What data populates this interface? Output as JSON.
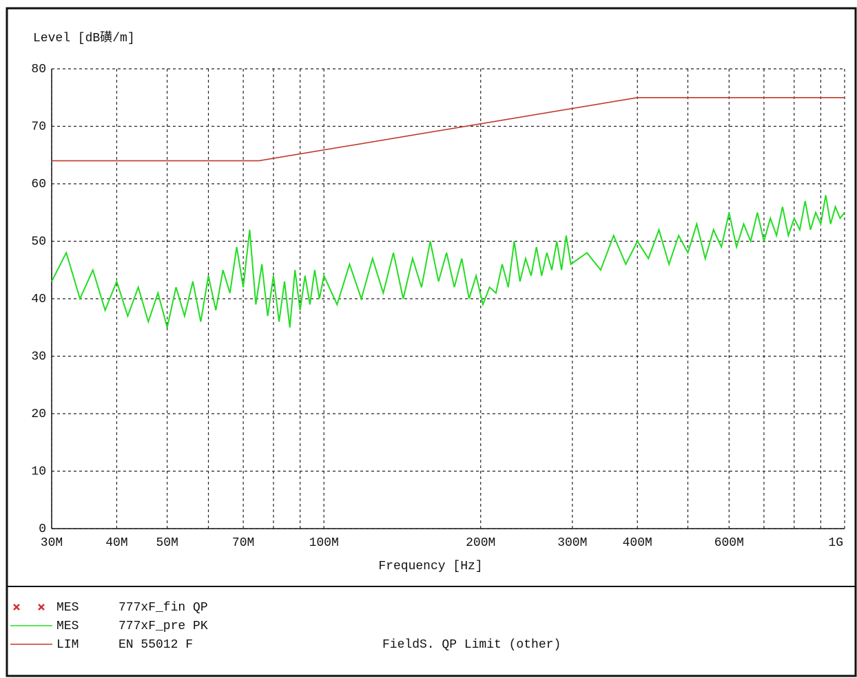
{
  "chart_data": {
    "type": "line",
    "ylabel": "Level [dB磺/m]",
    "xlabel": "Frequency [Hz]",
    "xscale": "log",
    "grid": true,
    "xlim": [
      30000000.0,
      1000000000.0
    ],
    "ylim": [
      0,
      80
    ],
    "yticks": [
      0,
      10,
      20,
      30,
      40,
      50,
      60,
      70,
      80
    ],
    "xticks": [
      {
        "value": 30000000.0,
        "label": "30M"
      },
      {
        "value": 40000000.0,
        "label": "40M"
      },
      {
        "value": 50000000.0,
        "label": "50M"
      },
      {
        "value": 70000000.0,
        "label": "70M"
      },
      {
        "value": 100000000.0,
        "label": "100M"
      },
      {
        "value": 200000000.0,
        "label": "200M"
      },
      {
        "value": 300000000.0,
        "label": "300M"
      },
      {
        "value": 400000000.0,
        "label": "400M"
      },
      {
        "value": 600000000.0,
        "label": "600M"
      },
      {
        "value": 1000000000.0,
        "label": "1G"
      }
    ],
    "xminor_ticks": [
      60000000.0,
      80000000.0,
      90000000.0,
      500000000.0,
      700000000.0,
      800000000.0,
      900000000.0
    ],
    "series": [
      {
        "kind": "MES",
        "name": "777xF_fin QP",
        "color": "#d03030",
        "marker": "x",
        "x": [],
        "values": []
      },
      {
        "kind": "MES",
        "name": "777xF_pre PK",
        "color": "#22dd22",
        "x": [
          30000000.0,
          32000000.0,
          34000000.0,
          36000000.0,
          38000000.0,
          40000000.0,
          42000000.0,
          44000000.0,
          46000000.0,
          48000000.0,
          50000000.0,
          52000000.0,
          54000000.0,
          56000000.0,
          58000000.0,
          60000000.0,
          62000000.0,
          64000000.0,
          66000000.0,
          68000000.0,
          70000000.0,
          72000000.0,
          74000000.0,
          76000000.0,
          78000000.0,
          80000000.0,
          82000000.0,
          84000000.0,
          86000000.0,
          88000000.0,
          90000000.0,
          92000000.0,
          94000000.0,
          96000000.0,
          98000000.0,
          100000000.0,
          106000000.0,
          112000000.0,
          118000000.0,
          124000000.0,
          130000000.0,
          136000000.0,
          142000000.0,
          148000000.0,
          154000000.0,
          160000000.0,
          166000000.0,
          172000000.0,
          178000000.0,
          184000000.0,
          190000000.0,
          196000000.0,
          202000000.0,
          208000000.0,
          214000000.0,
          220000000.0,
          226000000.0,
          232000000.0,
          238000000.0,
          244000000.0,
          250000000.0,
          256000000.0,
          262000000.0,
          268000000.0,
          274000000.0,
          280000000.0,
          286000000.0,
          292000000.0,
          298000000.0,
          320000000.0,
          340000000.0,
          360000000.0,
          380000000.0,
          400000000.0,
          420000000.0,
          440000000.0,
          460000000.0,
          480000000.0,
          500000000.0,
          520000000.0,
          540000000.0,
          560000000.0,
          580000000.0,
          600000000.0,
          620000000.0,
          640000000.0,
          660000000.0,
          680000000.0,
          700000000.0,
          720000000.0,
          740000000.0,
          760000000.0,
          780000000.0,
          800000000.0,
          820000000.0,
          840000000.0,
          860000000.0,
          880000000.0,
          900000000.0,
          920000000.0,
          940000000.0,
          960000000.0,
          980000000.0,
          1000000000.0
        ],
        "values": [
          43,
          48,
          40,
          45,
          38,
          43,
          37,
          42,
          36,
          41,
          35,
          42,
          37,
          43,
          36,
          44,
          38,
          45,
          41,
          49,
          42,
          52,
          39,
          46,
          37,
          44,
          36,
          43,
          35,
          45,
          38,
          44,
          39,
          45,
          40,
          44,
          39,
          46,
          40,
          47,
          41,
          48,
          40,
          47,
          42,
          50,
          43,
          48,
          42,
          47,
          40,
          44,
          39,
          42,
          41,
          46,
          42,
          50,
          43,
          47,
          44,
          49,
          44,
          48,
          45,
          50,
          45,
          51,
          46,
          48,
          45,
          51,
          46,
          50,
          47,
          52,
          46,
          51,
          48,
          53,
          47,
          52,
          49,
          55,
          49,
          53,
          50,
          55,
          50,
          54,
          51,
          56,
          51,
          54,
          52,
          57,
          52,
          55,
          53,
          58,
          53,
          56,
          54,
          55
        ]
      },
      {
        "kind": "LIM",
        "name": "EN 55012 F",
        "note": "FieldS. QP Limit (other)",
        "color": "#c0392b",
        "x": [
          30000000.0,
          75000000.0,
          400000000.0,
          1000000000.0
        ],
        "values": [
          64,
          64,
          75,
          75
        ]
      }
    ]
  }
}
